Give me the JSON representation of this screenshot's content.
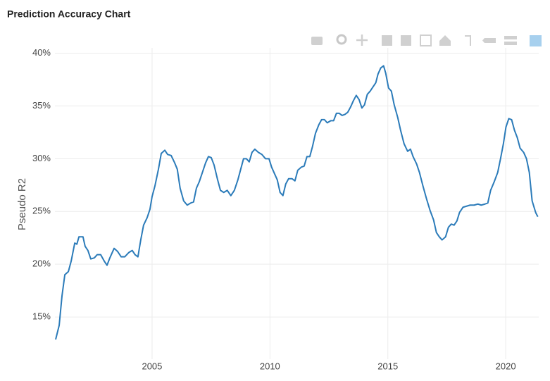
{
  "chart_data": {
    "type": "line",
    "title": "Prediction Accuracy Chart",
    "y_label": "Pseudo R2",
    "grid": true,
    "xlim": [
      2000.88,
      2021.4
    ],
    "xticks": [
      2005,
      2010,
      2015,
      2020
    ],
    "ylim": [
      11,
      40.5
    ],
    "yticks": [
      {
        "value": 15,
        "label": "15%"
      },
      {
        "value": 20,
        "label": "20%"
      },
      {
        "value": 25,
        "label": "25%"
      },
      {
        "value": 30,
        "label": "30%"
      },
      {
        "value": 35,
        "label": "35%"
      },
      {
        "value": 40,
        "label": "40%"
      }
    ],
    "x": [
      2000.91,
      2001.06,
      2001.18,
      2001.3,
      2001.45,
      2001.57,
      2001.72,
      2001.81,
      2001.9,
      2002.07,
      2002.16,
      2002.28,
      2002.4,
      2002.55,
      2002.67,
      2002.82,
      2002.97,
      2003.09,
      2003.21,
      2003.39,
      2003.54,
      2003.69,
      2003.84,
      2004.01,
      2004.16,
      2004.28,
      2004.4,
      2004.52,
      2004.64,
      2004.79,
      2004.91,
      2005.0,
      2005.12,
      2005.27,
      2005.39,
      2005.54,
      2005.66,
      2005.81,
      2005.96,
      2006.07,
      2006.19,
      2006.34,
      2006.49,
      2006.64,
      2006.76,
      2006.88,
      2007.0,
      2007.15,
      2007.27,
      2007.39,
      2007.51,
      2007.63,
      2007.78,
      2007.9,
      2008.04,
      2008.19,
      2008.34,
      2008.49,
      2008.64,
      2008.76,
      2008.88,
      2009.0,
      2009.12,
      2009.24,
      2009.36,
      2009.51,
      2009.66,
      2009.81,
      2009.96,
      2010.07,
      2010.19,
      2010.31,
      2010.43,
      2010.55,
      2010.67,
      2010.79,
      2010.94,
      2011.06,
      2011.18,
      2011.33,
      2011.45,
      2011.57,
      2011.69,
      2011.81,
      2011.93,
      2012.07,
      2012.19,
      2012.31,
      2012.43,
      2012.58,
      2012.7,
      2012.82,
      2012.94,
      2013.06,
      2013.18,
      2013.3,
      2013.42,
      2013.54,
      2013.66,
      2013.78,
      2013.9,
      2014.01,
      2014.13,
      2014.25,
      2014.37,
      2014.49,
      2014.58,
      2014.7,
      2014.82,
      2014.91,
      2015.03,
      2015.15,
      2015.27,
      2015.42,
      2015.54,
      2015.69,
      2015.84,
      2015.96,
      2016.07,
      2016.22,
      2016.34,
      2016.49,
      2016.64,
      2016.79,
      2016.94,
      2017.06,
      2017.18,
      2017.3,
      2017.45,
      2017.57,
      2017.69,
      2017.81,
      2017.93,
      2018.04,
      2018.19,
      2018.34,
      2018.49,
      2018.66,
      2018.82,
      2018.96,
      2019.12,
      2019.24,
      2019.36,
      2019.51,
      2019.66,
      2019.78,
      2019.9,
      2020.01,
      2020.13,
      2020.25,
      2020.37,
      2020.49,
      2020.61,
      2020.76,
      2020.88,
      2021.0,
      2021.12,
      2021.27,
      2021.36
    ],
    "series": [
      {
        "name": "Pseudo R2",
        "color": "#2b7bb9",
        "values": [
          12.86,
          14.2,
          17.0,
          19.0,
          19.3,
          20.3,
          22.0,
          21.9,
          22.6,
          22.6,
          21.7,
          21.3,
          20.5,
          20.6,
          20.9,
          20.9,
          20.3,
          19.9,
          20.6,
          21.5,
          21.2,
          20.7,
          20.7,
          21.1,
          21.3,
          20.9,
          20.7,
          22.3,
          23.7,
          24.4,
          25.2,
          26.4,
          27.4,
          29.0,
          30.5,
          30.8,
          30.4,
          30.3,
          29.6,
          29.0,
          27.2,
          26.0,
          25.6,
          25.8,
          25.9,
          27.2,
          27.8,
          28.8,
          29.6,
          30.2,
          30.1,
          29.4,
          28.0,
          27.0,
          26.8,
          27.0,
          26.5,
          27.0,
          28.0,
          29.0,
          30.0,
          30.0,
          29.7,
          30.6,
          30.9,
          30.6,
          30.4,
          30.0,
          30.0,
          29.2,
          28.6,
          28.0,
          26.8,
          26.5,
          27.6,
          28.1,
          28.1,
          27.9,
          28.9,
          29.2,
          29.3,
          30.2,
          30.2,
          31.2,
          32.4,
          33.2,
          33.7,
          33.7,
          33.4,
          33.6,
          33.6,
          34.3,
          34.3,
          34.1,
          34.2,
          34.4,
          34.9,
          35.5,
          36.0,
          35.6,
          34.8,
          35.1,
          36.1,
          36.4,
          36.8,
          37.2,
          38.0,
          38.6,
          38.8,
          38.1,
          36.7,
          36.4,
          35.1,
          33.9,
          32.7,
          31.4,
          30.7,
          30.9,
          30.2,
          29.5,
          28.7,
          27.4,
          26.2,
          25.1,
          24.2,
          23.0,
          22.6,
          22.3,
          22.6,
          23.5,
          23.8,
          23.7,
          24.1,
          24.9,
          25.4,
          25.5,
          25.6,
          25.6,
          25.7,
          25.6,
          25.7,
          25.8,
          27.0,
          27.8,
          28.7,
          30.0,
          31.4,
          33.0,
          33.8,
          33.7,
          32.7,
          32.0,
          31.0,
          30.6,
          30.0,
          28.7,
          26.0,
          24.9,
          24.5
        ]
      }
    ]
  }
}
